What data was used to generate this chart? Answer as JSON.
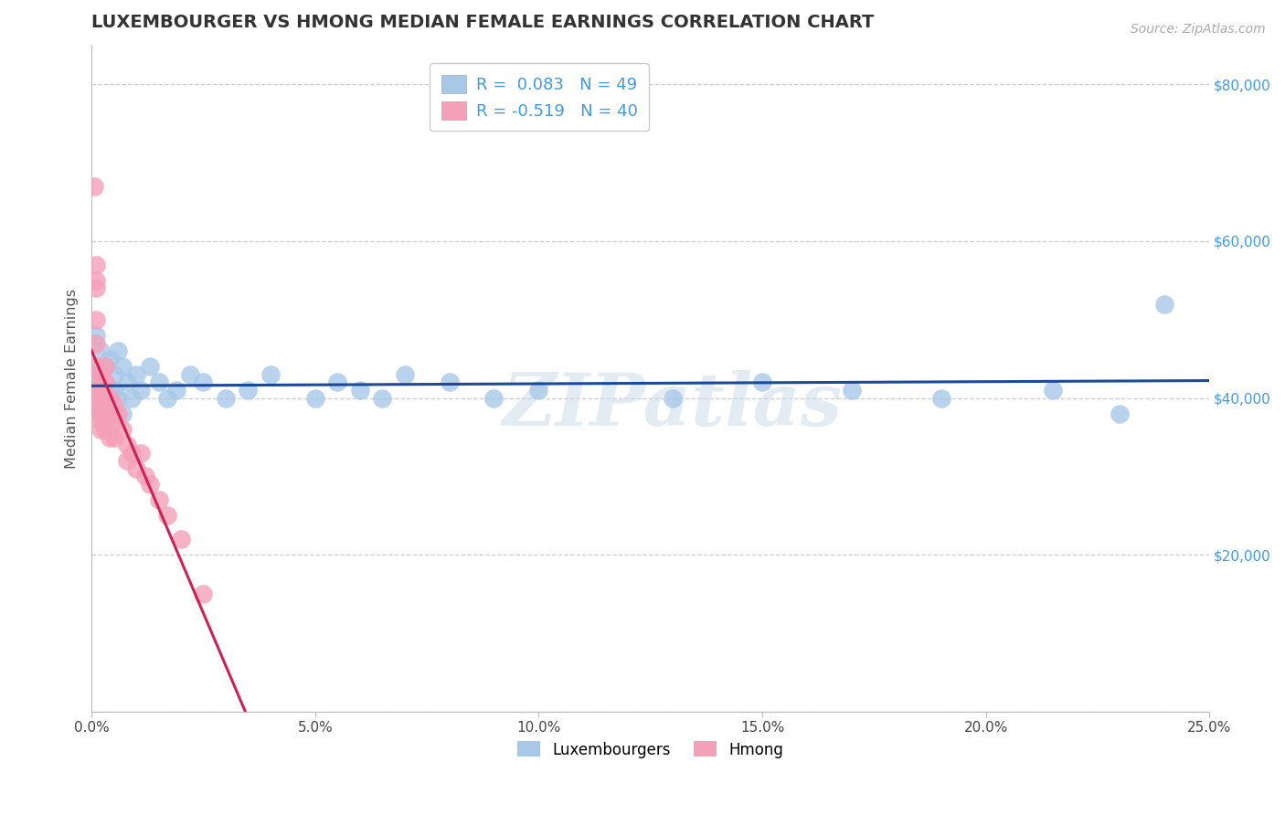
{
  "title": "LUXEMBOURGER VS HMONG MEDIAN FEMALE EARNINGS CORRELATION CHART",
  "source": "Source: ZipAtlas.com",
  "ylabel": "Median Female Earnings",
  "xlim": [
    0.0,
    0.25
  ],
  "ylim": [
    0,
    85000
  ],
  "yticks": [
    0,
    20000,
    40000,
    60000,
    80000
  ],
  "ytick_labels": [
    "",
    "$20,000",
    "$40,000",
    "$60,000",
    "$80,000"
  ],
  "xticks": [
    0.0,
    0.05,
    0.1,
    0.15,
    0.2,
    0.25
  ],
  "xtick_labels": [
    "0.0%",
    "5.0%",
    "10.0%",
    "15.0%",
    "20.0%",
    "25.0%"
  ],
  "watermark": "ZIPatlas",
  "blue_R": "0.083",
  "blue_N": "49",
  "pink_R": "-0.519",
  "pink_N": "40",
  "blue_color": "#a8c8e8",
  "pink_color": "#f4a0b8",
  "blue_line_color": "#1a4a99",
  "pink_line_color": "#cc2255",
  "title_color": "#333333",
  "axis_label_color": "#555555",
  "ytick_color": "#4499dd",
  "xtick_color": "#444444",
  "legend_text_color": "#4499dd",
  "grid_color": "#cccccc",
  "blue_x": [
    0.001,
    0.001,
    0.001,
    0.002,
    0.002,
    0.002,
    0.002,
    0.002,
    0.003,
    0.003,
    0.003,
    0.004,
    0.004,
    0.004,
    0.005,
    0.005,
    0.005,
    0.006,
    0.006,
    0.007,
    0.007,
    0.008,
    0.009,
    0.01,
    0.011,
    0.013,
    0.015,
    0.017,
    0.019,
    0.022,
    0.025,
    0.03,
    0.035,
    0.04,
    0.05,
    0.055,
    0.06,
    0.065,
    0.07,
    0.08,
    0.09,
    0.1,
    0.13,
    0.15,
    0.17,
    0.19,
    0.215,
    0.23,
    0.24
  ],
  "blue_y": [
    44000,
    41000,
    48000,
    42000,
    39000,
    43000,
    46000,
    38000,
    44000,
    40000,
    37000,
    45000,
    41000,
    39000,
    43000,
    38000,
    41000,
    46000,
    40000,
    44000,
    38000,
    42000,
    40000,
    43000,
    41000,
    44000,
    42000,
    40000,
    41000,
    43000,
    42000,
    40000,
    41000,
    43000,
    40000,
    42000,
    41000,
    40000,
    43000,
    42000,
    40000,
    41000,
    40000,
    42000,
    41000,
    40000,
    41000,
    38000,
    52000
  ],
  "pink_x": [
    0.0005,
    0.001,
    0.001,
    0.001,
    0.001,
    0.001,
    0.001,
    0.001,
    0.001,
    0.002,
    0.002,
    0.002,
    0.002,
    0.002,
    0.002,
    0.002,
    0.003,
    0.003,
    0.003,
    0.003,
    0.003,
    0.004,
    0.004,
    0.004,
    0.005,
    0.005,
    0.005,
    0.006,
    0.007,
    0.008,
    0.008,
    0.009,
    0.01,
    0.011,
    0.012,
    0.013,
    0.015,
    0.017,
    0.02,
    0.025
  ],
  "pink_y": [
    67000,
    57000,
    54000,
    50000,
    47000,
    44000,
    41000,
    39000,
    55000,
    43000,
    42000,
    40000,
    38000,
    36000,
    41000,
    37000,
    44000,
    40000,
    38000,
    36000,
    42000,
    40000,
    38000,
    35000,
    39000,
    37000,
    35000,
    38000,
    36000,
    34000,
    32000,
    33000,
    31000,
    33000,
    30000,
    29000,
    27000,
    25000,
    22000,
    15000
  ]
}
